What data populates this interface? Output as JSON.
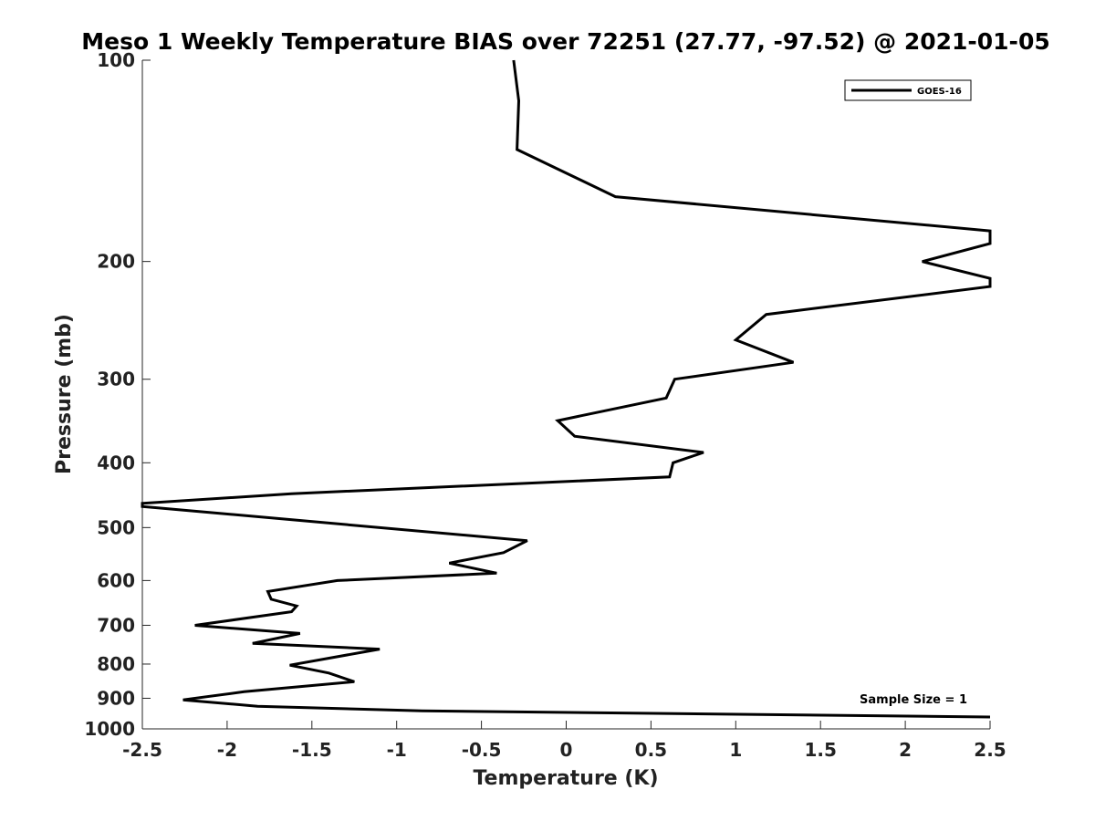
{
  "chart_data": {
    "type": "line",
    "title": "Meso 1 Weekly Temperature BIAS over 72251 (27.77, -97.52) @ 2021-01-05",
    "xlabel": "Temperature (K)",
    "ylabel": "Pressure (mb)",
    "xlim": [
      -2.5,
      2.5
    ],
    "ylim": [
      100,
      1000
    ],
    "yscale": "log",
    "y_inverted": true,
    "grid": false,
    "legend_position": "top-right",
    "x_ticks": [
      -2.5,
      -2,
      -1.5,
      -1,
      -0.5,
      0,
      0.5,
      1,
      1.5,
      2,
      2.5
    ],
    "x_tick_labels": [
      "-2.5",
      "-2",
      "-1.5",
      "-1",
      "-0.5",
      "0",
      "0.5",
      "1",
      "1.5",
      "2",
      "2.5"
    ],
    "y_ticks": [
      100,
      200,
      300,
      400,
      500,
      600,
      700,
      800,
      900,
      1000
    ],
    "y_tick_labels": [
      "100",
      "200",
      "300",
      "400",
      "500",
      "600",
      "700",
      "800",
      "900",
      "1000"
    ],
    "annotation": "Sample Size = 1",
    "series": [
      {
        "name": "GOES-16",
        "color": "#000000",
        "points": [
          {
            "x": -0.31,
            "y": 100
          },
          {
            "x": -0.28,
            "y": 115
          },
          {
            "x": -0.29,
            "y": 136
          },
          {
            "x": 0.29,
            "y": 160
          },
          {
            "x": 2.5,
            "y": 180
          },
          {
            "x": 2.5,
            "y": 188
          },
          {
            "x": 2.1,
            "y": 200
          },
          {
            "x": 2.5,
            "y": 212
          },
          {
            "x": 2.5,
            "y": 218
          },
          {
            "x": 1.18,
            "y": 240
          },
          {
            "x": 1.0,
            "y": 262
          },
          {
            "x": 1.34,
            "y": 283
          },
          {
            "x": 0.64,
            "y": 300
          },
          {
            "x": 0.59,
            "y": 320
          },
          {
            "x": -0.05,
            "y": 346
          },
          {
            "x": 0.05,
            "y": 365
          },
          {
            "x": 0.81,
            "y": 386
          },
          {
            "x": 0.63,
            "y": 400
          },
          {
            "x": 0.61,
            "y": 420
          },
          {
            "x": -1.62,
            "y": 445
          },
          {
            "x": -2.5,
            "y": 460
          },
          {
            "x": -2.5,
            "y": 465
          },
          {
            "x": -0.23,
            "y": 523
          },
          {
            "x": -0.37,
            "y": 545
          },
          {
            "x": -0.69,
            "y": 565
          },
          {
            "x": -0.41,
            "y": 585
          },
          {
            "x": -1.35,
            "y": 600
          },
          {
            "x": -1.76,
            "y": 623
          },
          {
            "x": -1.74,
            "y": 640
          },
          {
            "x": -1.59,
            "y": 655
          },
          {
            "x": -1.62,
            "y": 668
          },
          {
            "x": -2.19,
            "y": 700
          },
          {
            "x": -1.57,
            "y": 720
          },
          {
            "x": -1.85,
            "y": 745
          },
          {
            "x": -1.1,
            "y": 760
          },
          {
            "x": -1.41,
            "y": 785
          },
          {
            "x": -1.63,
            "y": 803
          },
          {
            "x": -1.4,
            "y": 825
          },
          {
            "x": -1.25,
            "y": 850
          },
          {
            "x": -1.9,
            "y": 880
          },
          {
            "x": -2.26,
            "y": 905
          },
          {
            "x": -1.82,
            "y": 925
          },
          {
            "x": -0.85,
            "y": 940
          },
          {
            "x": 2.5,
            "y": 960
          }
        ]
      }
    ]
  }
}
